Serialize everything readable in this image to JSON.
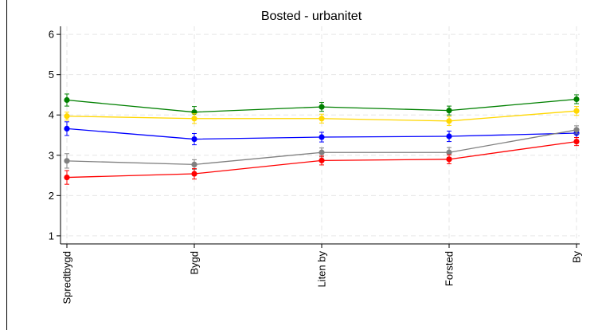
{
  "chart_data": {
    "type": "line",
    "title": "Bosted - urbanitet",
    "xlabel": "",
    "ylabel": "",
    "categories": [
      "Spredtbygd",
      "Bygd",
      "Liten by",
      "Forsted",
      "By"
    ],
    "ylim": [
      0.8,
      6.2
    ],
    "yticks": [
      1,
      2,
      3,
      4,
      5,
      6
    ],
    "grid": true,
    "legend": "none",
    "series": [
      {
        "color": "#008000",
        "values": [
          4.37,
          4.07,
          4.2,
          4.11,
          4.39
        ],
        "ci": [
          0.15,
          0.14,
          0.11,
          0.11,
          0.11
        ]
      },
      {
        "color": "#FFD700",
        "values": [
          3.97,
          3.91,
          3.91,
          3.85,
          4.1
        ],
        "ci": [
          0.1,
          0.12,
          0.11,
          0.11,
          0.11
        ]
      },
      {
        "color": "#0000FF",
        "values": [
          3.66,
          3.4,
          3.45,
          3.47,
          3.55
        ],
        "ci": [
          0.17,
          0.14,
          0.12,
          0.13,
          0.11
        ]
      },
      {
        "color": "#808080",
        "values": [
          2.86,
          2.77,
          3.07,
          3.07,
          3.63
        ],
        "ci": [
          0.18,
          0.12,
          0.11,
          0.12,
          0.1
        ]
      },
      {
        "color": "#FF0000",
        "values": [
          2.45,
          2.54,
          2.87,
          2.9,
          3.34
        ],
        "ci": [
          0.17,
          0.13,
          0.11,
          0.11,
          0.1
        ]
      }
    ]
  }
}
